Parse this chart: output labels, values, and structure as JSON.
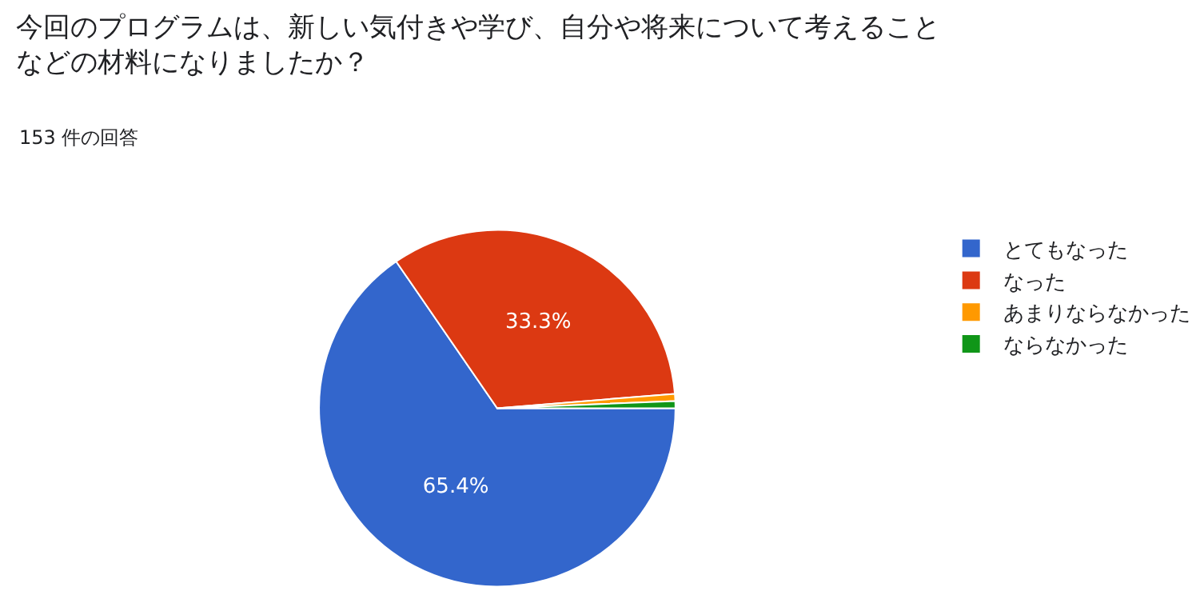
{
  "chart_data": {
    "type": "pie",
    "title": "今回のプログラムは、新しい気付きや学び、自分や将来について考えることなどの材料になりましたか？",
    "subtitle": "153 件の回答",
    "categories": [
      "とてもなった",
      "なった",
      "あまりならなかった",
      "ならなかった"
    ],
    "values": [
      65.4,
      33.3,
      0.65,
      0.65
    ],
    "colors": [
      "#3366cc",
      "#dc3912",
      "#ff9900",
      "#109618"
    ],
    "value_labels": [
      "65.4%",
      "33.3%",
      null,
      null
    ],
    "legend": "right"
  }
}
